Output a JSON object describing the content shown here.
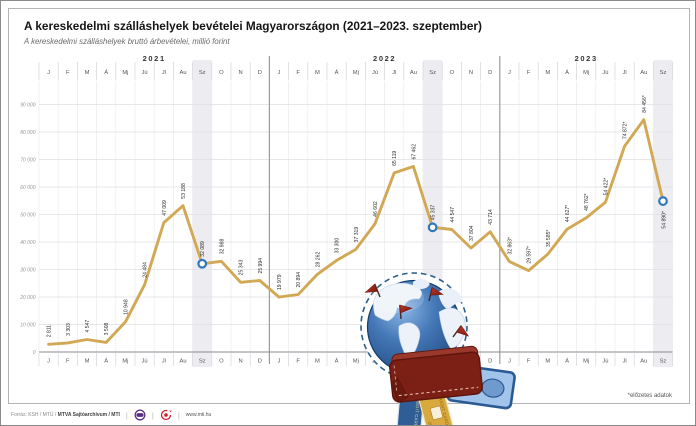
{
  "page_title": "A kereskedelmi szálláshelyek bevételei Magyarországon (2021–2023. szeptember)",
  "subtitle": "A kereskedelmi szálláshelyek bruttó árbevételei, millió forint",
  "footnote": "*előzetes adatok",
  "footer": {
    "source_regular": "Forrás: KSH / MTÜ /",
    "source_bold": "MTVA Sajtóarchívum / MTI",
    "separator": "|",
    "url": "www.mti.hu"
  },
  "illustration": {
    "credit_card_text": "CREDIT CARD"
  },
  "colors": {
    "line": "#d2a855",
    "marker_ring": "#2e79bd",
    "september_band": "#ededf1",
    "wallet_maroon": "#7c2016",
    "globe_blue": "#3e74b5"
  },
  "chart_data": {
    "type": "line",
    "unit": "millió forint",
    "ylim": [
      0,
      90000
    ],
    "y_ticks": [
      0,
      10000,
      20000,
      30000,
      40000,
      50000,
      60000,
      70000,
      80000,
      90000
    ],
    "month_labels": [
      "J",
      "F",
      "M",
      "Á",
      "Mj",
      "Jú",
      "Jl",
      "Au",
      "Sz",
      "O",
      "N",
      "D"
    ],
    "highlighted_month": "Sz",
    "years": [
      {
        "label": "2021",
        "values": [
          2811,
          3303,
          4547,
          3508,
          10948,
          24484,
          47009,
          53188,
          32089,
          32988,
          25343,
          25994
        ],
        "point_labels": [
          "2 811",
          "3 303",
          "4 547",
          "3 508",
          "10 948",
          "24 484",
          "47 009",
          "53 188",
          "32 089",
          "32 988",
          "25 343",
          "25 994"
        ]
      },
      {
        "label": "2022",
        "values": [
          19979,
          20894,
          28262,
          33300,
          37319,
          46602,
          65119,
          67462,
          45337,
          44547,
          37804,
          43714
        ],
        "point_labels": [
          "19 979",
          "20 894",
          "28 262",
          "33 300",
          "37 319",
          "46 602",
          "65 119",
          "67 462",
          "45 337",
          "44 547",
          "37 804",
          "43 714"
        ]
      },
      {
        "label": "2023",
        "values": [
          32863,
          29597,
          35585,
          44627,
          48762,
          54422,
          74872,
          84456,
          54890
        ],
        "point_labels": [
          "32 863*",
          "29 597*",
          "35 585*",
          "44 627*",
          "48 762*",
          "54 422*",
          "74 872*",
          "84 456*",
          "54 890*"
        ]
      }
    ]
  }
}
